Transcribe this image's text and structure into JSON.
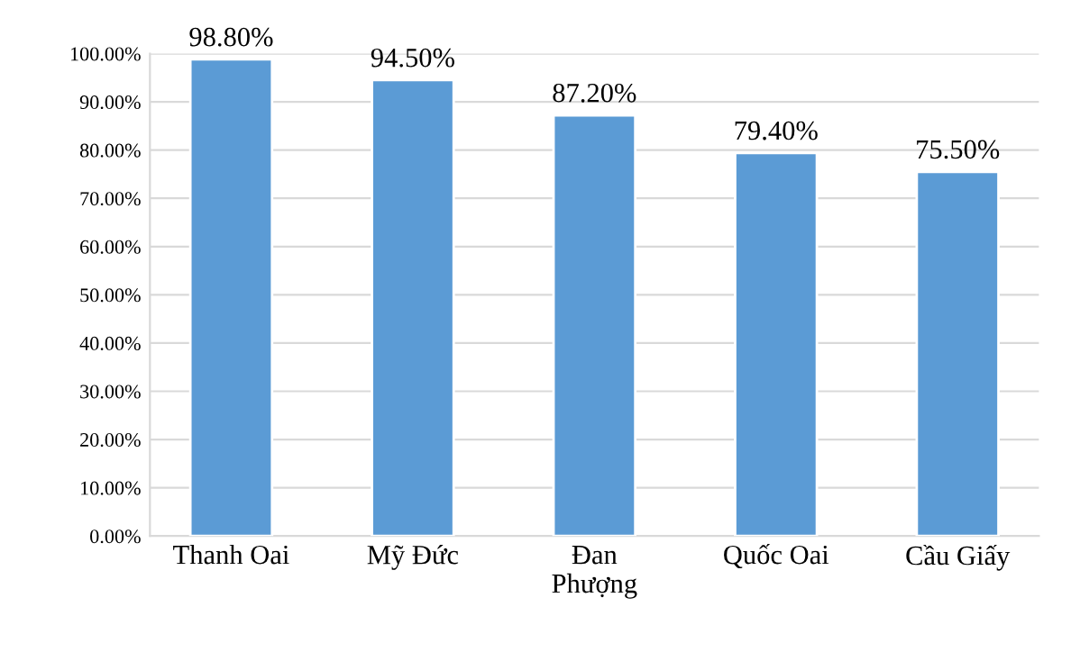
{
  "chart_data": {
    "type": "bar",
    "categories": [
      "Thanh Oai",
      "Mỹ Đức",
      "Đan\nPhượng",
      "Quốc Oai",
      "Cầu Giấy"
    ],
    "values": [
      98.8,
      94.5,
      87.2,
      79.4,
      75.5
    ],
    "value_labels": [
      "98.80%",
      "94.50%",
      "87.20%",
      "79.40%",
      "75.50%"
    ],
    "color": "#5b9bd5",
    "ylim": [
      0,
      100
    ],
    "yticks": [
      {
        "value": 0,
        "label": "0.00%"
      },
      {
        "value": 10,
        "label": "10.00%"
      },
      {
        "value": 20,
        "label": "20.00%"
      },
      {
        "value": 30,
        "label": "30.00%"
      },
      {
        "value": 40,
        "label": "40.00%"
      },
      {
        "value": 50,
        "label": "50.00%"
      },
      {
        "value": 60,
        "label": "60.00%"
      },
      {
        "value": 70,
        "label": "70.00%"
      },
      {
        "value": 80,
        "label": "80.00%"
      },
      {
        "value": 90,
        "label": "90.00%"
      },
      {
        "value": 100,
        "label": "100.00%"
      }
    ],
    "grid": "y"
  }
}
